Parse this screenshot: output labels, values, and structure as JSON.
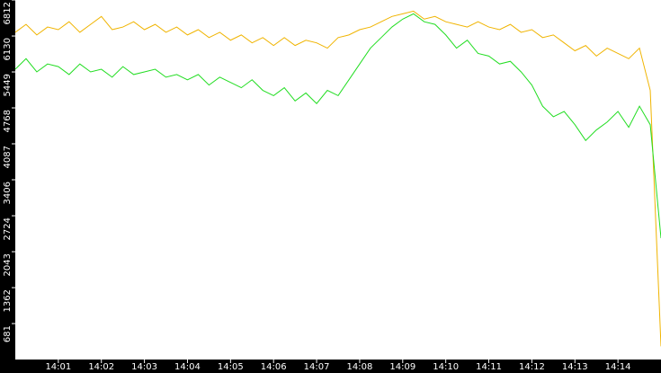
{
  "chart_data": {
    "type": "line",
    "x": [
      0,
      0.25,
      0.5,
      0.75,
      1,
      1.25,
      1.5,
      1.75,
      2,
      2.25,
      2.5,
      2.75,
      3,
      3.25,
      3.5,
      3.75,
      4,
      4.25,
      4.5,
      4.75,
      5,
      5.25,
      5.5,
      5.75,
      6,
      6.25,
      6.5,
      6.75,
      7,
      7.25,
      7.5,
      7.75,
      8,
      8.25,
      8.5,
      8.75,
      9,
      9.25,
      9.5,
      9.75,
      10,
      10.25,
      10.5,
      10.75,
      11,
      11.25,
      11.5,
      11.75,
      12,
      12.25,
      12.5,
      12.75,
      13,
      13.25,
      13.5,
      13.75,
      14,
      14.25,
      14.5,
      14.75,
      15
    ],
    "series": [
      {
        "color": "#f0b400",
        "values": [
          6200,
          6350,
          6150,
          6300,
          6250,
          6400,
          6200,
          6350,
          6500,
          6250,
          6300,
          6400,
          6250,
          6350,
          6200,
          6300,
          6150,
          6250,
          6100,
          6200,
          6050,
          6150,
          6000,
          6100,
          5950,
          6100,
          5950,
          6050,
          6000,
          5900,
          6100,
          6150,
          6250,
          6300,
          6400,
          6500,
          6550,
          6600,
          6450,
          6500,
          6400,
          6350,
          6300,
          6400,
          6300,
          6250,
          6350,
          6200,
          6250,
          6100,
          6150,
          6000,
          5850,
          5950,
          5750,
          5900,
          5800,
          5700,
          5900,
          5100,
          250
        ]
      },
      {
        "color": "#22dd22",
        "values": [
          5500,
          5700,
          5450,
          5600,
          5550,
          5400,
          5600,
          5450,
          5500,
          5350,
          5550,
          5400,
          5450,
          5500,
          5350,
          5400,
          5300,
          5400,
          5200,
          5350,
          5250,
          5150,
          5300,
          5100,
          5000,
          5150,
          4900,
          5050,
          4850,
          5100,
          5000,
          5300,
          5600,
          5900,
          6100,
          6300,
          6450,
          6550,
          6400,
          6350,
          6150,
          5900,
          6050,
          5800,
          5750,
          5600,
          5650,
          5450,
          5200,
          4800,
          4600,
          4700,
          4450,
          4150,
          4350,
          4500,
          4700,
          4400,
          4800,
          4450,
          2300
        ]
      }
    ],
    "xlim": [
      0,
      15
    ],
    "xticks": [
      {
        "value": 1,
        "label": "14:01"
      },
      {
        "value": 2,
        "label": "14:02"
      },
      {
        "value": 3,
        "label": "14:03"
      },
      {
        "value": 4,
        "label": "14:04"
      },
      {
        "value": 5,
        "label": "14:05"
      },
      {
        "value": 6,
        "label": "14:06"
      },
      {
        "value": 7,
        "label": "14:07"
      },
      {
        "value": 8,
        "label": "14:08"
      },
      {
        "value": 9,
        "label": "14:09"
      },
      {
        "value": 10,
        "label": "14:10"
      },
      {
        "value": 11,
        "label": "14:11"
      },
      {
        "value": 12,
        "label": "14:12"
      },
      {
        "value": 13,
        "label": "14:13"
      },
      {
        "value": 14,
        "label": "14:14"
      }
    ],
    "ylim": [
      0,
      6812
    ],
    "yticks": [
      681,
      1362,
      2043,
      2724,
      3406,
      4087,
      4768,
      5449,
      6130,
      6812
    ]
  }
}
